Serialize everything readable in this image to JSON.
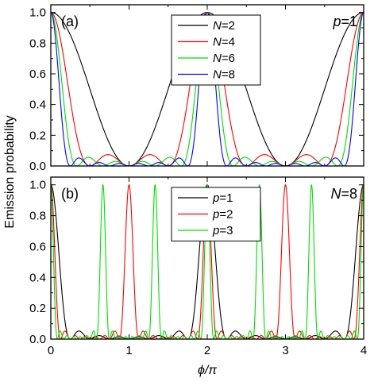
{
  "chart_data": {
    "type": "line",
    "xlabel": "ϕ/π",
    "ylabel": "Emission probability",
    "xlim": [
      0,
      4
    ],
    "xticks": [
      "0",
      "1",
      "2",
      "3",
      "4"
    ],
    "panels": [
      {
        "tag": "(a)",
        "param_label_var": "p",
        "param_label_value": "=1",
        "ylim": [
          0,
          1.05
        ],
        "yticks": [
          "0.0",
          "0.2",
          "0.4",
          "0.6",
          "0.8",
          "1.0"
        ],
        "legend_position": "top-center",
        "series": [
          {
            "var": "N",
            "value": "=2",
            "N": 2,
            "p": 1,
            "color": "#000000"
          },
          {
            "var": "N",
            "value": "=4",
            "N": 4,
            "p": 1,
            "color": "#ff0000"
          },
          {
            "var": "N",
            "value": "=6",
            "N": 6,
            "p": 1,
            "color": "#00dd00"
          },
          {
            "var": "N",
            "value": "=8",
            "N": 8,
            "p": 1,
            "color": "#0000ff"
          }
        ]
      },
      {
        "tag": "(b)",
        "param_label_var": "N",
        "param_label_value": "=8",
        "ylim": [
          0,
          1.05
        ],
        "yticks": [
          "0.0",
          "0.2",
          "0.4",
          "0.6",
          "0.8",
          "1.0"
        ],
        "legend_position": "top-center",
        "series": [
          {
            "var": "p",
            "value": "=1",
            "N": 8,
            "p": 1,
            "color": "#000000"
          },
          {
            "var": "p",
            "value": "=2",
            "N": 8,
            "p": 2,
            "color": "#ff0000"
          },
          {
            "var": "p",
            "value": "=3",
            "N": 8,
            "p": 3,
            "color": "#00dd00"
          }
        ]
      }
    ]
  }
}
